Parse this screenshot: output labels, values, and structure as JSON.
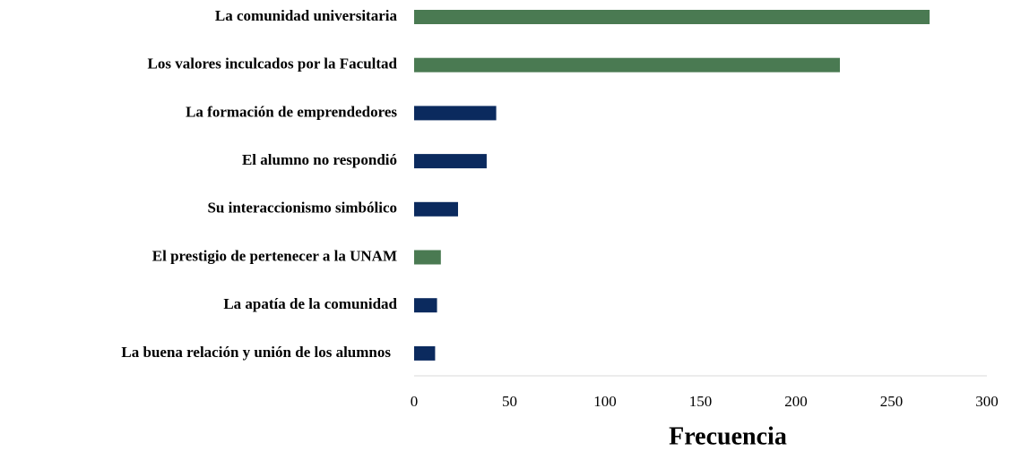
{
  "chart_data": {
    "type": "bar",
    "orientation": "horizontal",
    "categories": [
      "La comunidad universitaria",
      "Los valores inculcados por la Facultad",
      "La formación de emprendedores",
      "El alumno no respondió",
      "Su interaccionismo simbólico",
      "El prestigio de pertenecer a la UNAM",
      "La apatía de la comunidad",
      "La buena relación y unión de los alumnos"
    ],
    "values": [
      270,
      223,
      43,
      38,
      23,
      14,
      12,
      11
    ],
    "colors": [
      "#4a7a52",
      "#4a7a52",
      "#0b2a5e",
      "#0b2a5e",
      "#0b2a5e",
      "#4a7a52",
      "#0b2a5e",
      "#0b2a5e"
    ],
    "xlim": [
      0,
      300
    ],
    "xticks": [
      0,
      50,
      100,
      150,
      200,
      250,
      300
    ],
    "xlabel": "Frecuencia",
    "grid": false
  }
}
